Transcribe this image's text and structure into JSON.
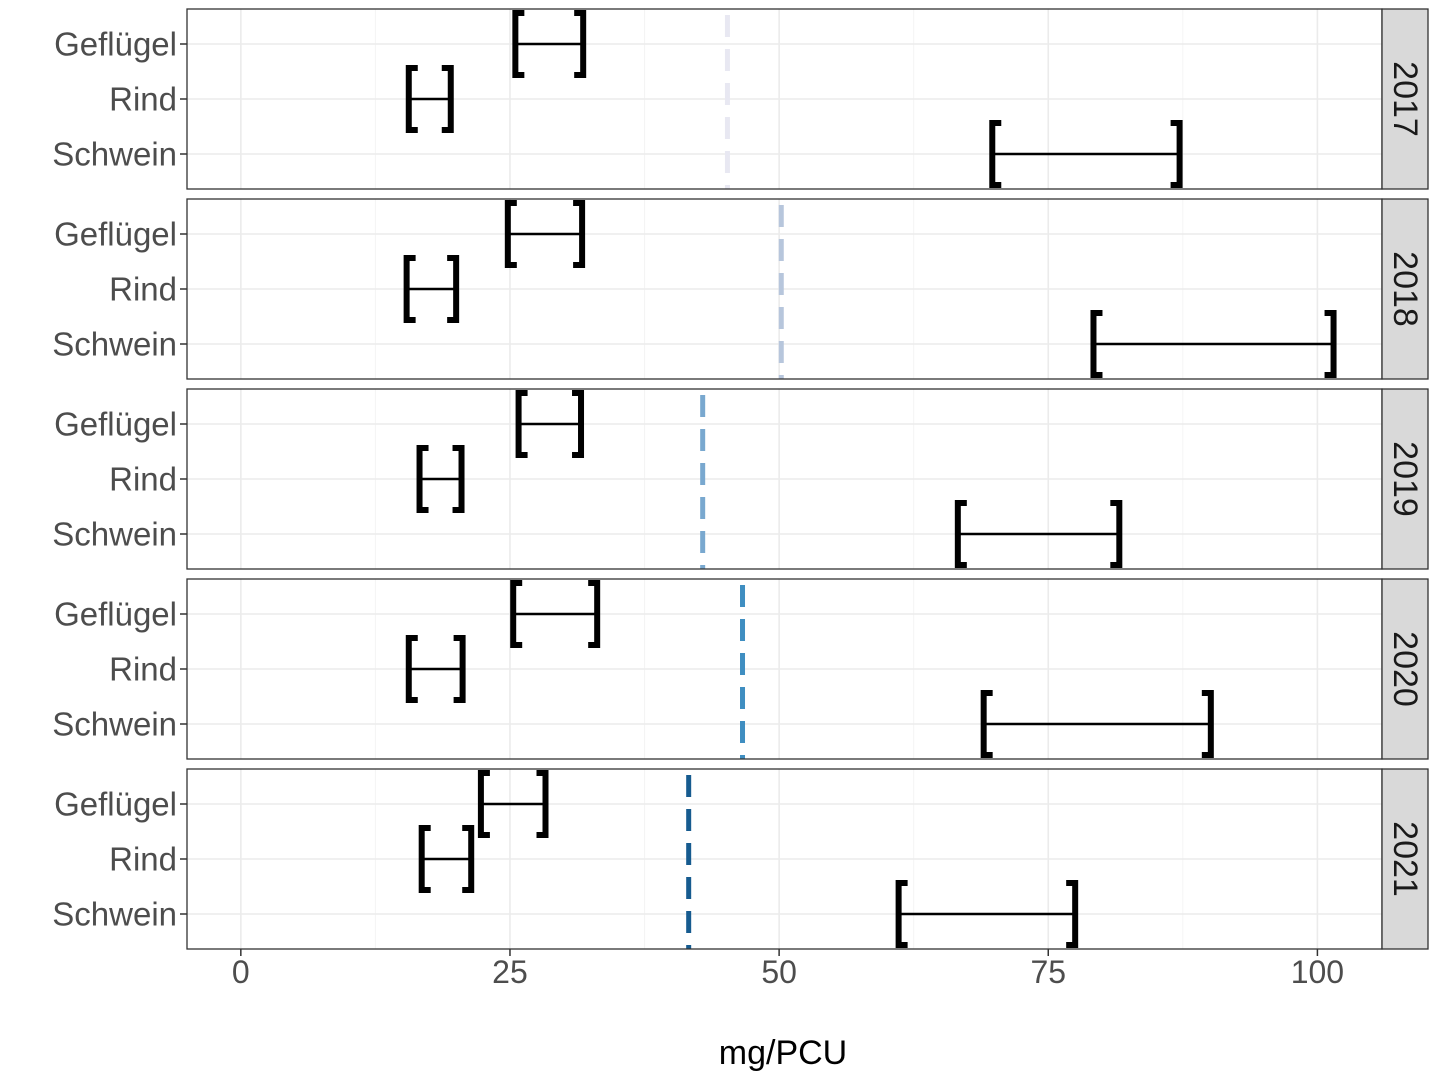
{
  "chart_data": {
    "type": "interval",
    "title": "",
    "xlabel": "mg/PCU",
    "ylabel": "",
    "xlim": [
      -5,
      106
    ],
    "x_ticks": [
      0,
      25,
      50,
      75,
      100
    ],
    "x_tick_labels": [
      "0",
      "25",
      "50",
      "75",
      "100"
    ],
    "categories": [
      "Geflügel",
      "Rind",
      "Schwein"
    ],
    "grid": true,
    "facet_strip_position": "right",
    "panels": [
      {
        "facet": "2017",
        "reference_line": {
          "value": 45.2,
          "color": "#e8e8f2",
          "style": "dashed"
        },
        "intervals": [
          {
            "category": "Geflügel",
            "low": 25.5,
            "high": 31.8
          },
          {
            "category": "Rind",
            "low": 15.6,
            "high": 19.5
          },
          {
            "category": "Schwein",
            "low": 69.8,
            "high": 87.2
          }
        ]
      },
      {
        "facet": "2018",
        "reference_line": {
          "value": 50.2,
          "color": "#b7c6dc",
          "style": "dashed"
        },
        "intervals": [
          {
            "category": "Geflügel",
            "low": 24.8,
            "high": 31.7
          },
          {
            "category": "Rind",
            "low": 15.4,
            "high": 20.0
          },
          {
            "category": "Schwein",
            "low": 79.2,
            "high": 101.5
          }
        ]
      },
      {
        "facet": "2019",
        "reference_line": {
          "value": 42.9,
          "color": "#79a8cf",
          "style": "dashed"
        },
        "intervals": [
          {
            "category": "Geflügel",
            "low": 25.8,
            "high": 31.6
          },
          {
            "category": "Rind",
            "low": 16.6,
            "high": 20.5
          },
          {
            "category": "Schwein",
            "low": 66.6,
            "high": 81.6
          }
        ]
      },
      {
        "facet": "2020",
        "reference_line": {
          "value": 46.6,
          "color": "#3f8ec1",
          "style": "dashed"
        },
        "intervals": [
          {
            "category": "Geflügel",
            "low": 25.3,
            "high": 33.1
          },
          {
            "category": "Rind",
            "low": 15.6,
            "high": 20.6
          },
          {
            "category": "Schwein",
            "low": 69.0,
            "high": 90.1
          }
        ]
      },
      {
        "facet": "2021",
        "reference_line": {
          "value": 41.6,
          "color": "#165b8f",
          "style": "dashed"
        },
        "intervals": [
          {
            "category": "Geflügel",
            "low": 22.3,
            "high": 28.3
          },
          {
            "category": "Rind",
            "low": 16.8,
            "high": 21.4
          },
          {
            "category": "Schwein",
            "low": 61.1,
            "high": 77.5
          }
        ]
      }
    ]
  },
  "colors": {
    "panel_border": "#333333",
    "grid_major": "#ebebeb",
    "grid_minor": "#f4f4f4",
    "strip_fill": "#d9d9d9",
    "interval": "#000000",
    "axis_text": "#4d4d4d",
    "axis_title": "#000000"
  }
}
